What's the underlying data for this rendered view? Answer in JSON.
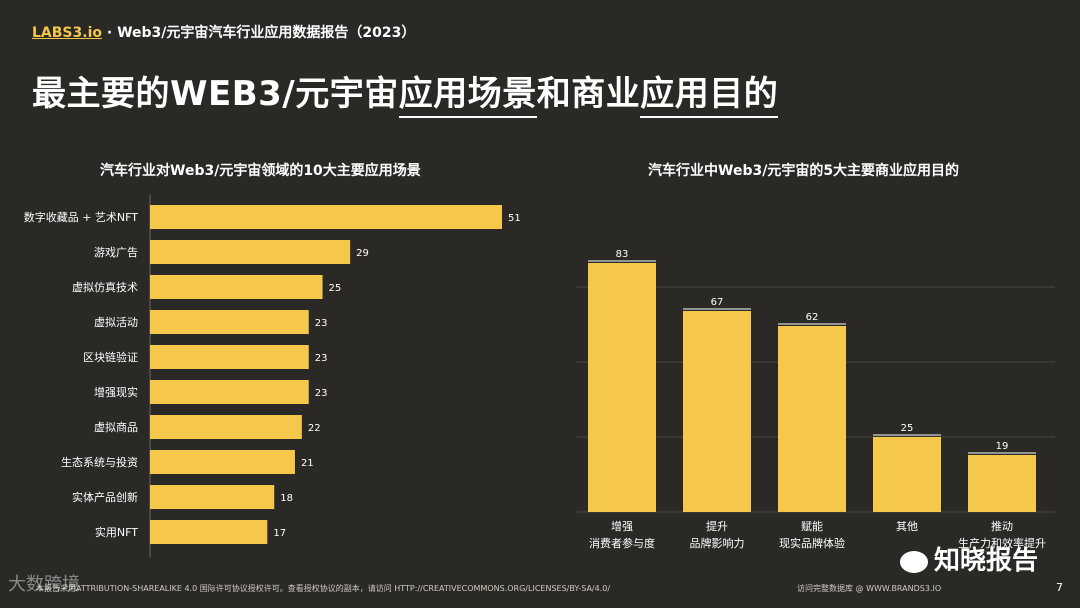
{
  "header": {
    "brand": "LABS3.io",
    "title": " · Web3/元宇宙汽车行业应用数据报告（2023）"
  },
  "page_title": {
    "part1": "最主要的WEB3/元宇宙",
    "part2": "应用场景",
    "part3": "和商业",
    "part4": "应用目的"
  },
  "colors": {
    "bar": "#f5c84c",
    "background": "#2b2926",
    "text": "#ffffff"
  },
  "chart_data": [
    {
      "type": "bar",
      "orientation": "horizontal",
      "title": "汽车行业对Web3/元宇宙领域的10大主要应用场景",
      "categories": [
        "数字收藏品 + 艺术NFT",
        "游戏广告",
        "虚拟仿真技术",
        "虚拟活动",
        "区块链验证",
        "增强现实",
        "虚拟商品",
        "生态系统与投资",
        "实体产品创新",
        "实用NFT"
      ],
      "values": [
        51,
        29,
        25,
        23,
        23,
        23,
        22,
        21,
        18,
        17
      ],
      "xlim": [
        0,
        56
      ]
    },
    {
      "type": "bar",
      "orientation": "vertical",
      "title": "汽车行业中Web3/元宇宙的5大主要商业应用目的",
      "categories": [
        [
          "增强",
          "消费者参与度"
        ],
        [
          "提升",
          "品牌影响力"
        ],
        [
          "赋能",
          "现实品牌体验"
        ],
        [
          "其他",
          ""
        ],
        [
          "推动",
          "生产力和效率提升"
        ]
      ],
      "values": [
        83,
        67,
        62,
        25,
        19
      ],
      "ylim": [
        0,
        100
      ]
    }
  ],
  "footer": {
    "license": "本报告采用ATTRIBUTION-SHAREALIKE 4.0 国际许可协议授权许可。查看授权协议的副本，请访问 HTTP://CREATIVECOMMONS.ORG/LICENSES/BY-SA/4.0/",
    "link": "访问完整数据库 @ WWW.BRANDS3.IO",
    "page": "7"
  },
  "watermarks": {
    "left": "大数跨境",
    "right": "知晓报告"
  }
}
